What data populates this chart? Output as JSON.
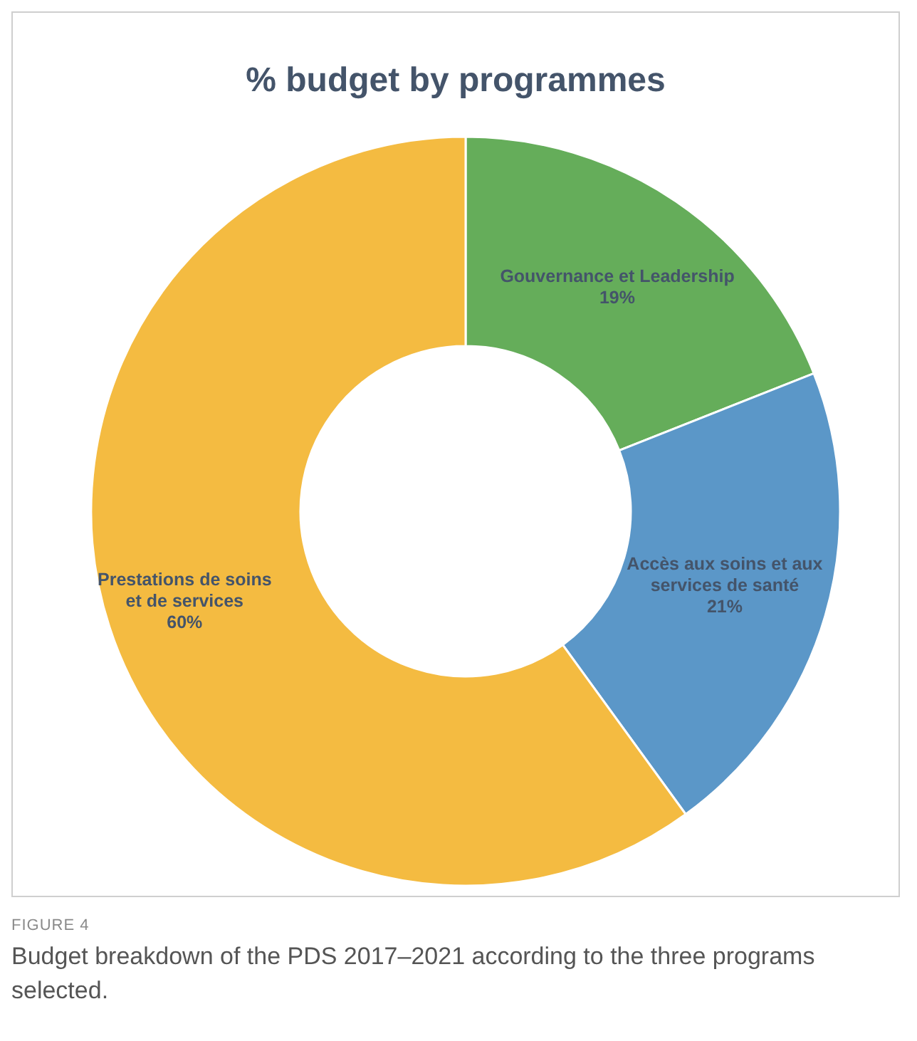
{
  "chart_data": {
    "type": "donut",
    "title": "% budget by programmes",
    "categories": [
      "Gouvernance et Leadership",
      "Accès aux soins et aux services de santé",
      "Prestations de soins et de services"
    ],
    "values": [
      19,
      21,
      60
    ],
    "colors": [
      "#65ad5a",
      "#5b97c8",
      "#f4bb41"
    ],
    "value_labels": [
      "19%",
      "21%",
      "60%"
    ],
    "annotations": [
      "FIGURE 4",
      "Budget breakdown of the PDS 2017–2021 according to the three programs selected."
    ]
  }
}
